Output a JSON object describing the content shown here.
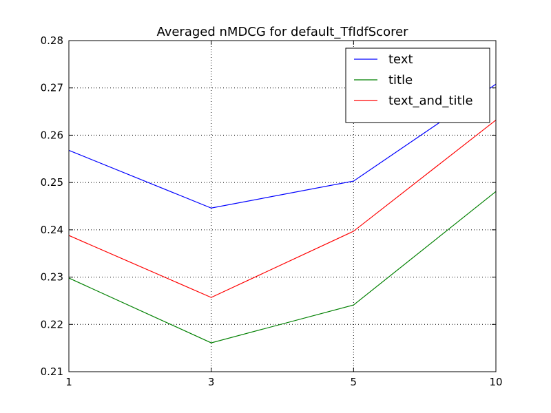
{
  "chart_data": {
    "type": "line",
    "title": "Averaged nMDCG for default_TfIdfScorer",
    "xlabel": "",
    "ylabel": "",
    "categories": [
      "1",
      "3",
      "5",
      "10"
    ],
    "ylim": [
      0.21,
      0.28
    ],
    "yticks": [
      "0.21",
      "0.22",
      "0.23",
      "0.24",
      "0.25",
      "0.26",
      "0.27",
      "0.28"
    ],
    "grid": true,
    "legend_position": "top-right",
    "series": [
      {
        "name": "text",
        "color": "#0000ff",
        "values": [
          0.2568,
          0.2446,
          0.2503,
          0.2708
        ]
      },
      {
        "name": "title",
        "color": "#008000",
        "values": [
          0.2298,
          0.2161,
          0.2241,
          0.2481
        ]
      },
      {
        "name": "text_and_title",
        "color": "#ff0000",
        "values": [
          0.2388,
          0.2257,
          0.2397,
          0.2632
        ]
      }
    ]
  }
}
